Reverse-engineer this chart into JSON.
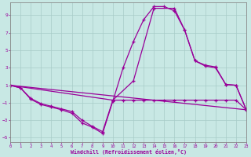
{
  "xlabel": "Windchill (Refroidissement éolien,°C)",
  "bg_color": "#c8e8e4",
  "line_color": "#990099",
  "grid_color": "#a8ccc8",
  "xlim": [
    0,
    23
  ],
  "ylim": [
    -5.5,
    10.5
  ],
  "xticks": [
    0,
    1,
    2,
    3,
    4,
    5,
    6,
    7,
    8,
    9,
    10,
    11,
    12,
    13,
    14,
    15,
    16,
    17,
    18,
    19,
    20,
    21,
    22,
    23
  ],
  "yticks": [
    -5,
    -3,
    -1,
    1,
    3,
    5,
    7,
    9
  ],
  "curve1_x": [
    0,
    1,
    2,
    3,
    4,
    5,
    6,
    7,
    8,
    9,
    10,
    11,
    12,
    13,
    14,
    15,
    16,
    17,
    18,
    19,
    20,
    21,
    22,
    23
  ],
  "curve1_y": [
    1.0,
    0.7,
    -0.6,
    -1.2,
    -1.5,
    -1.8,
    -2.2,
    -3.3,
    -3.8,
    -4.5,
    -0.8,
    3.0,
    6.0,
    8.5,
    10.0,
    10.0,
    9.5,
    7.3,
    3.8,
    3.2,
    3.0,
    1.1,
    1.0,
    -1.8
  ],
  "curve2_x": [
    0,
    1,
    2,
    3,
    4,
    5,
    6,
    7,
    8,
    9,
    10,
    11,
    12,
    13,
    14,
    15,
    16,
    17,
    18,
    19,
    20,
    21,
    22,
    23
  ],
  "curve2_y": [
    1.0,
    0.7,
    -0.5,
    -1.1,
    -1.4,
    -1.7,
    -2.0,
    -3.0,
    -3.7,
    -4.3,
    -0.7,
    -0.7,
    -0.7,
    -0.7,
    -0.7,
    -0.7,
    -0.7,
    -0.7,
    -0.7,
    -0.7,
    -0.7,
    -0.7,
    -0.7,
    -1.8
  ],
  "curve3_x": [
    0,
    23
  ],
  "curve3_y": [
    1.0,
    -1.8
  ],
  "curve4_x": [
    0,
    10,
    12,
    14,
    16,
    17,
    18,
    19,
    20,
    21,
    22,
    23
  ],
  "curve4_y": [
    1.0,
    -0.7,
    1.5,
    9.8,
    9.8,
    7.3,
    3.8,
    3.3,
    3.1,
    1.1,
    1.0,
    -1.8
  ]
}
